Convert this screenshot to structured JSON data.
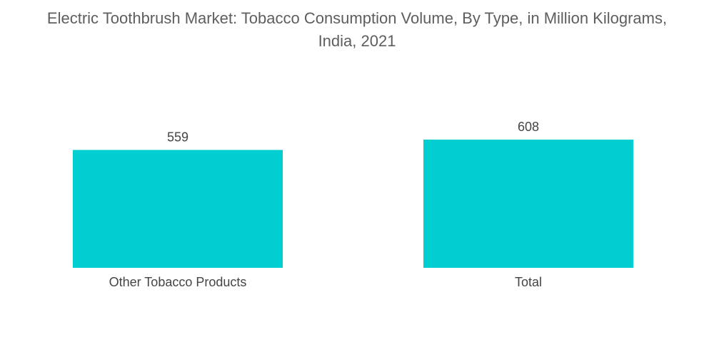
{
  "chart_data": {
    "type": "bar",
    "title_line1": "Electric Toothbrush Market: Tobacco Consumption Volume, By Type, in Million Kilograms,",
    "title_line2": "India, 2021",
    "categories": [
      "Other Tobacco Products",
      "Total"
    ],
    "values": [
      559,
      608
    ],
    "value_labels": [
      "559",
      "608"
    ],
    "bar_color": "#00CED1",
    "grid": false,
    "legend": "none"
  }
}
